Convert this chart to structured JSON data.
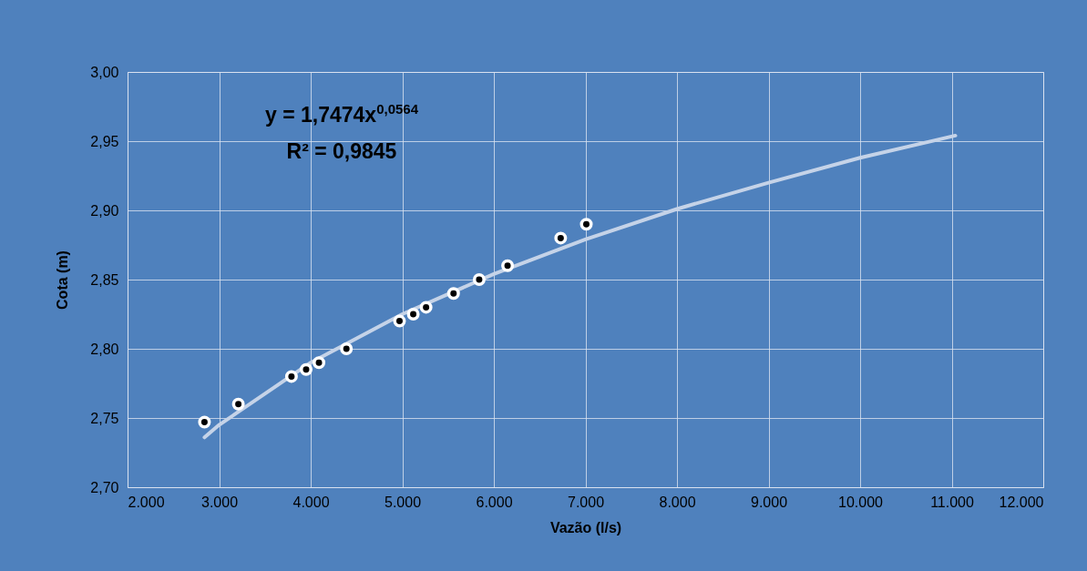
{
  "chart_data": {
    "type": "scatter",
    "xlabel": "Vazão (l/s)",
    "ylabel": "Cota (m)",
    "annotations": [
      "y = 1,7474x$^{0,0564}$",
      "R² = 0,9845"
    ],
    "series": [
      {
        "marker": "circle",
        "color": "#000000",
        "x": [
          2840,
          3210,
          3790,
          3950,
          4090,
          4390,
          4970,
          5120,
          5260,
          5560,
          5840,
          6150,
          6730,
          7010
        ],
        "values": [
          2.747,
          2.76,
          2.78,
          2.785,
          2.79,
          2.8,
          2.82,
          2.825,
          2.83,
          2.84,
          2.85,
          2.86,
          2.88,
          2.89
        ]
      },
      {
        "type": "line",
        "color": "#c5d3e8",
        "x": [
          2840,
          3000,
          4000,
          5000,
          6000,
          7000,
          8000,
          9000,
          10000,
          11040
        ],
        "values": [
          2.736,
          2.745,
          2.79,
          2.825,
          2.854,
          2.879,
          2.901,
          2.92,
          2.938,
          2.954
        ]
      }
    ],
    "xlim": [
      2000,
      12000
    ],
    "ylim": [
      2.7,
      3.0
    ],
    "xticks": [
      {
        "value": 2000,
        "label": "2.000"
      },
      {
        "value": 3000,
        "label": "3.000"
      },
      {
        "value": 4000,
        "label": "4.000"
      },
      {
        "value": 5000,
        "label": "5.000"
      },
      {
        "value": 6000,
        "label": "6.000"
      },
      {
        "value": 7000,
        "label": "7.000"
      },
      {
        "value": 8000,
        "label": "8.000"
      },
      {
        "value": 9000,
        "label": "9.000"
      },
      {
        "value": 10000,
        "label": "10.000"
      },
      {
        "value": 11000,
        "label": "11.000"
      },
      {
        "value": 12000,
        "label": "12.000"
      }
    ],
    "yticks": [
      {
        "value": 2.7,
        "label": "2,70"
      },
      {
        "value": 2.75,
        "label": "2,75"
      },
      {
        "value": 2.8,
        "label": "2,80"
      },
      {
        "value": 2.85,
        "label": "2,85"
      },
      {
        "value": 2.9,
        "label": "2,90"
      },
      {
        "value": 2.95,
        "label": "2,95"
      },
      {
        "value": 3.0,
        "label": "3,00"
      }
    ],
    "grid": true,
    "line_style": "solid"
  }
}
